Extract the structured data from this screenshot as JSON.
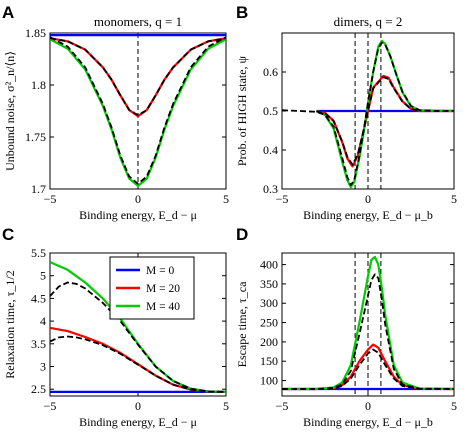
{
  "chart_data": [
    {
      "panel": "A",
      "type": "line",
      "title": "monomers, q = 1",
      "xlabel": "Binding energy, E_d − μ",
      "ylabel": "Unbound noise, σ²_n/⟨n⟩",
      "xlim": [
        -5,
        5
      ],
      "ylim": [
        1.7,
        1.85
      ],
      "xticks": [
        "−5",
        "0",
        "5"
      ],
      "yticks": [
        "1.7",
        "1.75",
        "1.8",
        "1.85"
      ],
      "vlines": [
        0
      ],
      "series": [
        {
          "name": "M = 0",
          "color": "#0000ff",
          "x": [
            -5,
            5
          ],
          "y": [
            1.848,
            1.848
          ]
        },
        {
          "name": "M = 20",
          "color": "#ff0000",
          "x": [
            -5,
            -4,
            -3,
            -2,
            -1.5,
            -1,
            -0.5,
            0,
            0.5,
            1,
            1.5,
            2,
            3,
            4,
            5
          ],
          "y": [
            1.845,
            1.842,
            1.834,
            1.817,
            1.805,
            1.79,
            1.776,
            1.77,
            1.776,
            1.79,
            1.805,
            1.817,
            1.834,
            1.842,
            1.845
          ]
        },
        {
          "name": "M = 40",
          "color": "#00cc00",
          "x": [
            -5,
            -4,
            -3,
            -2,
            -1.5,
            -1,
            -0.5,
            0,
            0.5,
            1,
            1.5,
            2,
            3,
            4,
            5
          ],
          "y": [
            1.844,
            1.835,
            1.815,
            1.78,
            1.757,
            1.73,
            1.71,
            1.703,
            1.71,
            1.73,
            1.757,
            1.78,
            1.815,
            1.835,
            1.844
          ]
        },
        {
          "name": "approx-20",
          "color": "#000000",
          "dashed": true,
          "x": [
            -5,
            -4,
            -3,
            -2,
            -1.5,
            -1,
            -0.5,
            0,
            0.5,
            1,
            1.5,
            2,
            3,
            4,
            5
          ],
          "y": [
            1.845,
            1.842,
            1.834,
            1.817,
            1.805,
            1.79,
            1.776,
            1.771,
            1.776,
            1.79,
            1.805,
            1.817,
            1.834,
            1.842,
            1.845
          ]
        },
        {
          "name": "approx-40",
          "color": "#000000",
          "dashed": true,
          "x": [
            -5,
            -4,
            -3,
            -2,
            -1.5,
            -1,
            -0.5,
            0,
            0.5,
            1,
            1.5,
            2,
            3,
            4,
            5
          ],
          "y": [
            1.846,
            1.837,
            1.817,
            1.782,
            1.759,
            1.732,
            1.712,
            1.705,
            1.712,
            1.732,
            1.759,
            1.782,
            1.817,
            1.837,
            1.846
          ]
        }
      ]
    },
    {
      "panel": "B",
      "type": "line",
      "title": "dimers, q = 2",
      "xlabel": "Binding energy, E_d − μ_b",
      "ylabel": "Prob. of HIGH state, ψ",
      "xlim": [
        -5,
        5
      ],
      "ylim": [
        0.3,
        0.7
      ],
      "xticks": [
        "−5",
        "0",
        "5"
      ],
      "yticks": [
        "0.3",
        "0.4",
        "0.5",
        "0.6"
      ],
      "vlines": [
        -0.75,
        0,
        0.75
      ],
      "series": [
        {
          "name": "M = 0",
          "color": "#0000ff",
          "x": [
            -3,
            5
          ],
          "y": [
            0.5,
            0.5
          ]
        },
        {
          "name": "M = 20",
          "color": "#ff0000",
          "x": [
            -3,
            -2.5,
            -2,
            -1.5,
            -1.2,
            -0.9,
            -0.6,
            -0.3,
            0,
            0.3,
            0.6,
            0.9,
            1.2,
            1.5,
            2,
            2.5,
            3,
            5
          ],
          "y": [
            0.5,
            0.495,
            0.475,
            0.42,
            0.378,
            0.358,
            0.385,
            0.44,
            0.5,
            0.56,
            0.575,
            0.59,
            0.585,
            0.56,
            0.525,
            0.505,
            0.5,
            0.5
          ]
        },
        {
          "name": "M = 40",
          "color": "#00cc00",
          "x": [
            -3,
            -2.5,
            -2,
            -1.5,
            -1.2,
            -1.0,
            -0.8,
            -0.5,
            -0.2,
            0,
            0.3,
            0.6,
            0.8,
            1.0,
            1.3,
            1.6,
            2,
            2.5,
            3,
            5
          ],
          "y": [
            0.5,
            0.49,
            0.455,
            0.37,
            0.322,
            0.305,
            0.318,
            0.38,
            0.46,
            0.52,
            0.6,
            0.665,
            0.68,
            0.672,
            0.64,
            0.6,
            0.548,
            0.512,
            0.502,
            0.5
          ]
        },
        {
          "name": "approx-left",
          "color": "#000000",
          "dashed": true,
          "x": [
            -5,
            -4,
            -3,
            -2.5,
            -2,
            -1.5,
            -1.2,
            -1.0,
            -0.8,
            -0.5,
            -0.2,
            0,
            0.3,
            0.6,
            0.8,
            1.0,
            1.3,
            1.6,
            2,
            2.5,
            3,
            4,
            5
          ],
          "y": [
            0.502,
            0.5,
            0.498,
            0.49,
            0.46,
            0.38,
            0.33,
            0.31,
            0.322,
            0.385,
            0.465,
            0.522,
            0.6,
            0.66,
            0.675,
            0.67,
            0.64,
            0.6,
            0.55,
            0.513,
            0.502,
            0.5,
            0.5
          ]
        },
        {
          "name": "approx-20",
          "color": "#000000",
          "dashed": true,
          "x": [
            -3,
            -2.5,
            -2,
            -1.5,
            -1.2,
            -0.9,
            -0.6,
            -0.3,
            0,
            0.3,
            0.6,
            0.9,
            1.2,
            1.5,
            2,
            2.5,
            3
          ],
          "y": [
            0.499,
            0.494,
            0.474,
            0.422,
            0.382,
            0.362,
            0.388,
            0.442,
            0.5,
            0.558,
            0.573,
            0.587,
            0.582,
            0.558,
            0.524,
            0.505,
            0.5
          ]
        }
      ]
    },
    {
      "panel": "C",
      "type": "line",
      "title": "",
      "xlabel": "Binding energy, E_d − μ",
      "ylabel": "Relaxation time, τ_1/2",
      "xlim": [
        -5,
        5
      ],
      "ylim": [
        2.35,
        5.5
      ],
      "xticks": [
        "−5",
        "0",
        "5"
      ],
      "yticks": [
        "2.5",
        "3",
        "3.5",
        "4",
        "4.5",
        "5",
        "5.5"
      ],
      "vlines": [],
      "series": [
        {
          "name": "M = 0",
          "color": "#0000ff",
          "x": [
            -5,
            5
          ],
          "y": [
            2.44,
            2.44
          ]
        },
        {
          "name": "M = 20",
          "color": "#ff0000",
          "x": [
            -5,
            -4,
            -3,
            -2,
            -1,
            0,
            1,
            2,
            3,
            4,
            5
          ],
          "y": [
            3.85,
            3.78,
            3.65,
            3.5,
            3.3,
            3.05,
            2.8,
            2.6,
            2.49,
            2.45,
            2.44
          ]
        },
        {
          "name": "M = 40",
          "color": "#00cc00",
          "x": [
            -5,
            -4,
            -3,
            -2,
            -1,
            0,
            1,
            2,
            3,
            4,
            5
          ],
          "y": [
            5.3,
            5.13,
            4.85,
            4.5,
            4.05,
            3.5,
            3.0,
            2.68,
            2.51,
            2.45,
            2.44
          ]
        },
        {
          "name": "approx-20",
          "color": "#000000",
          "dashed": true,
          "x": [
            -5,
            -4.5,
            -4,
            -3.5,
            -3,
            -2,
            -1,
            0,
            1,
            2,
            3,
            4,
            5
          ],
          "y": [
            3.55,
            3.64,
            3.66,
            3.64,
            3.6,
            3.47,
            3.28,
            3.04,
            2.8,
            2.6,
            2.49,
            2.45,
            2.44
          ]
        },
        {
          "name": "approx-40",
          "color": "#000000",
          "dashed": true,
          "x": [
            -5,
            -4.5,
            -4,
            -3.5,
            -3,
            -2,
            -1,
            0,
            1,
            2,
            3,
            4,
            5
          ],
          "y": [
            4.55,
            4.76,
            4.85,
            4.82,
            4.72,
            4.4,
            4.0,
            3.48,
            3.0,
            2.68,
            2.51,
            2.45,
            2.44
          ]
        }
      ]
    },
    {
      "panel": "D",
      "type": "line",
      "title": "",
      "xlabel": "Binding energy, E_d − μ_b",
      "ylabel": "Escape time, τ_ca",
      "xlim": [
        -5,
        5
      ],
      "ylim": [
        60,
        430
      ],
      "xticks": [
        "−5",
        "0",
        "5"
      ],
      "yticks": [
        "100",
        "150",
        "200",
        "250",
        "300",
        "350",
        "400"
      ],
      "vlines": [
        -0.75,
        0,
        0.75
      ],
      "series": [
        {
          "name": "M = 0",
          "color": "#0000ff",
          "x": [
            -5,
            5
          ],
          "y": [
            78,
            78
          ]
        },
        {
          "name": "M = 20",
          "color": "#ff0000",
          "x": [
            -5,
            -3,
            -2,
            -1.5,
            -1,
            -0.5,
            0,
            0.3,
            0.6,
            1,
            1.5,
            2,
            3,
            5
          ],
          "y": [
            78,
            78,
            80,
            88,
            110,
            150,
            180,
            193,
            185,
            150,
            110,
            88,
            79,
            78
          ]
        },
        {
          "name": "M = 40",
          "color": "#00cc00",
          "x": [
            -5,
            -3,
            -2,
            -1.5,
            -1,
            -0.5,
            0,
            0.2,
            0.4,
            0.6,
            0.8,
            1,
            1.5,
            2,
            3,
            5
          ],
          "y": [
            78,
            78,
            82,
            95,
            140,
            250,
            370,
            412,
            420,
            400,
            340,
            270,
            140,
            95,
            79,
            78
          ]
        },
        {
          "name": "approx-20",
          "color": "#000000",
          "dashed": true,
          "x": [
            -5,
            -3,
            -2,
            -1.5,
            -1,
            -0.5,
            0,
            0.3,
            0.6,
            1,
            1.5,
            2,
            3,
            5
          ],
          "y": [
            78,
            78,
            80,
            86,
            105,
            140,
            170,
            180,
            172,
            140,
            105,
            86,
            79,
            78
          ]
        },
        {
          "name": "approx-40",
          "color": "#000000",
          "dashed": true,
          "x": [
            -5,
            -3,
            -2,
            -1.5,
            -1,
            -0.5,
            0,
            0.2,
            0.4,
            0.6,
            0.8,
            1,
            1.5,
            2,
            3,
            5
          ],
          "y": [
            78,
            78,
            81,
            90,
            125,
            220,
            320,
            360,
            375,
            365,
            310,
            245,
            130,
            90,
            79,
            78
          ]
        }
      ]
    }
  ],
  "legend": {
    "entries": [
      {
        "label": "M = 0",
        "color": "#0000ff"
      },
      {
        "label": "M = 20",
        "color": "#ff0000"
      },
      {
        "label": "M = 40",
        "color": "#00cc00"
      }
    ]
  },
  "panel_labels": {
    "A": "A",
    "B": "B",
    "C": "C",
    "D": "D"
  }
}
